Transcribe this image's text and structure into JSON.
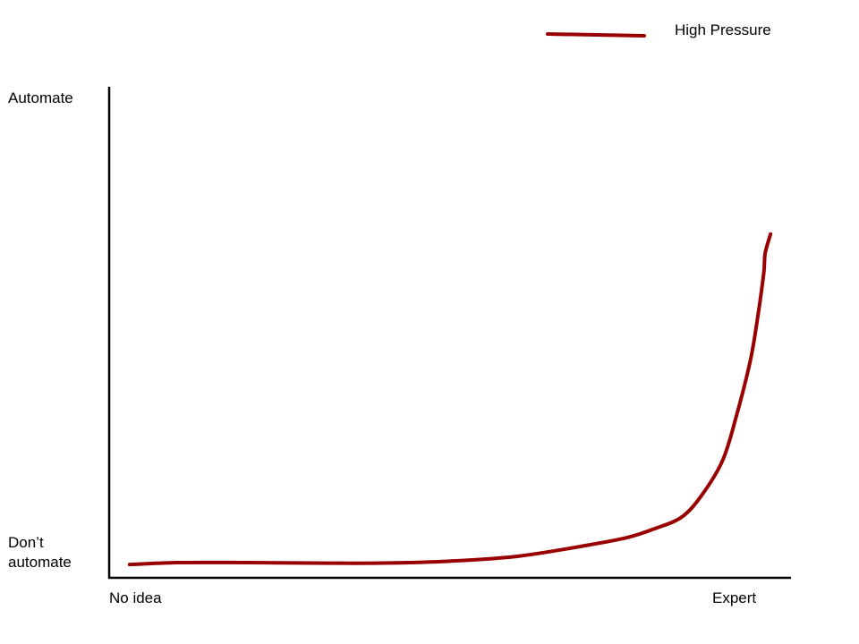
{
  "chart_data": {
    "type": "line",
    "title": "",
    "xlabel": "",
    "ylabel": "",
    "xlim": [
      0,
      1
    ],
    "ylim": [
      0,
      1
    ],
    "x_tick_labels": [
      "No idea",
      "Expert"
    ],
    "y_tick_labels": [
      "Don’t\nautomate",
      "Automate"
    ],
    "grid": false,
    "legend_position": "top-right",
    "series": [
      {
        "name": "High Pressure",
        "color": "#990000",
        "x": [
          0.03,
          0.1,
          0.2,
          0.3,
          0.4,
          0.5,
          0.6,
          0.7,
          0.76,
          0.8,
          0.84,
          0.87,
          0.9,
          0.92,
          0.94,
          0.95,
          0.96,
          0.962,
          0.97
        ],
        "y": [
          0.027,
          0.031,
          0.031,
          0.03,
          0.03,
          0.034,
          0.044,
          0.066,
          0.082,
          0.1,
          0.124,
          0.17,
          0.24,
          0.33,
          0.44,
          0.52,
          0.62,
          0.66,
          0.7
        ]
      }
    ]
  }
}
